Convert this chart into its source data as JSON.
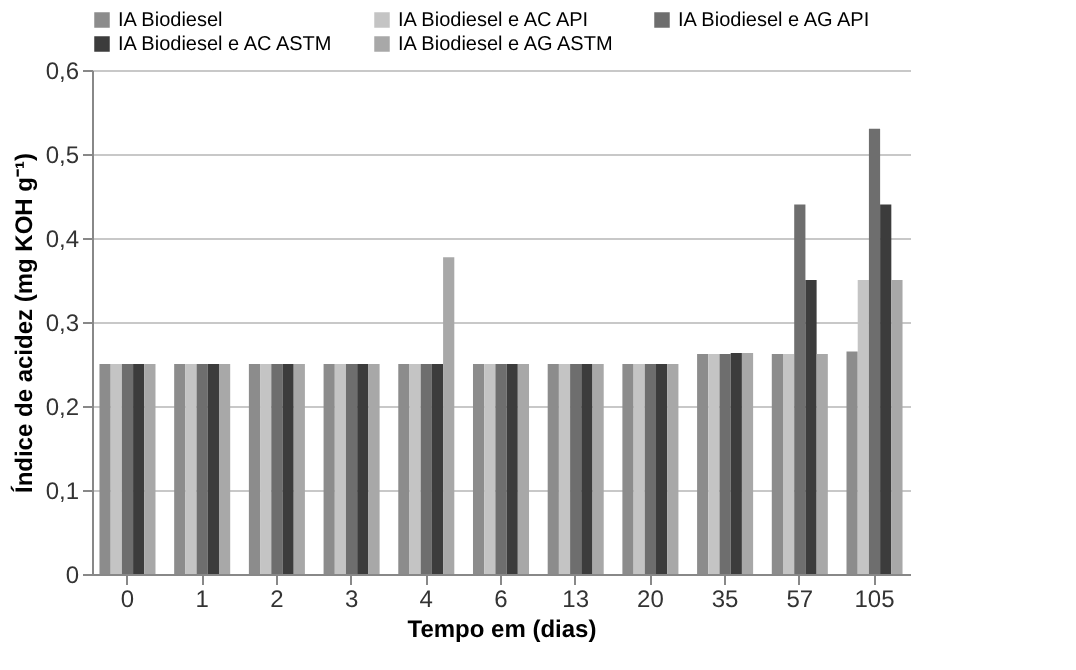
{
  "chart_data": {
    "type": "bar",
    "xlabel": "Tempo em (dias)",
    "ylabel": "Índice de acidez (mg KOH g⁻¹)",
    "categories": [
      "0",
      "1",
      "2",
      "3",
      "4",
      "6",
      "13",
      "20",
      "35",
      "57",
      "105"
    ],
    "series": [
      {
        "name": "IA Biodiesel",
        "color": "#8c8c8c",
        "values": [
          0.25,
          0.25,
          0.25,
          0.25,
          0.25,
          0.25,
          0.25,
          0.25,
          0.262,
          0.262,
          0.265
        ]
      },
      {
        "name": "IA Biodiesel e AC API",
        "color": "#c4c4c4",
        "values": [
          0.25,
          0.25,
          0.25,
          0.25,
          0.25,
          0.25,
          0.25,
          0.25,
          0.262,
          0.262,
          0.35
        ]
      },
      {
        "name": "IA Biodiesel e AG API",
        "color": "#6e6e6e",
        "values": [
          0.25,
          0.25,
          0.25,
          0.25,
          0.25,
          0.25,
          0.25,
          0.25,
          0.262,
          0.44,
          0.53
        ]
      },
      {
        "name": "IA Biodiesel e AC ASTM",
        "color": "#3c3c3c",
        "values": [
          0.25,
          0.25,
          0.25,
          0.25,
          0.25,
          0.25,
          0.25,
          0.25,
          0.263,
          0.35,
          0.44
        ]
      },
      {
        "name": "IA Biodiesel e AG ASTM",
        "color": "#a8a8a8",
        "values": [
          0.25,
          0.25,
          0.25,
          0.25,
          0.377,
          0.25,
          0.25,
          0.25,
          0.263,
          0.262,
          0.35
        ]
      }
    ],
    "ylim": [
      0,
      0.6
    ],
    "yticks": [
      0,
      {
        "value": 0.1,
        "label": "0,1"
      },
      {
        "value": 0.2,
        "label": "0,2"
      },
      {
        "value": 0.3,
        "label": "0,3"
      },
      {
        "value": 0.4,
        "label": "0,4"
      },
      {
        "value": 0.5,
        "label": "0,5"
      },
      {
        "value": 0.6,
        "label": "0,6"
      }
    ],
    "grid": "y",
    "legend": "top"
  }
}
